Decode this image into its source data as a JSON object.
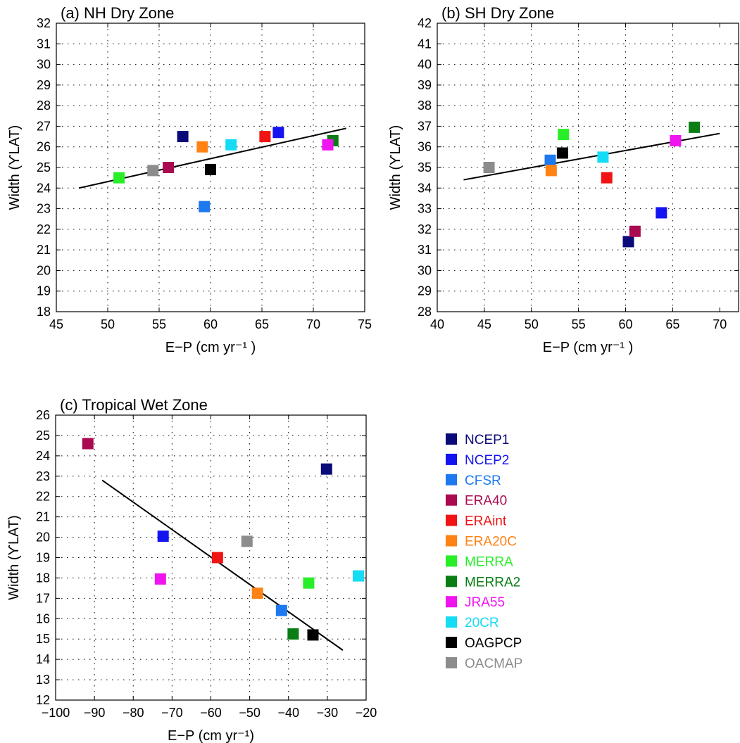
{
  "series_colors": {
    "NCEP1": "#0a0a78",
    "NCEP2": "#1414f0",
    "CFSR": "#1e78f0",
    "ERA40": "#aa0a50",
    "ERAint": "#f01414",
    "ERA20C": "#ff8214",
    "MERRA": "#28ee28",
    "MERRA2": "#0a7d14",
    "JRA55": "#f014f0",
    "20CR": "#14dcf5",
    "OAGPCP": "#000000",
    "OACMAP": "#8c8c8c"
  },
  "legend": {
    "entries": [
      "NCEP1",
      "NCEP2",
      "CFSR",
      "ERA40",
      "ERAint",
      "ERA20C",
      "MERRA",
      "MERRA2",
      "JRA55",
      "20CR",
      "OAGPCP",
      "OACMAP"
    ]
  },
  "chart_data": [
    {
      "type": "scatter",
      "title": "(a)  NH Dry Zone",
      "xlabel": "E−P (cm yr⁻¹ )",
      "ylabel": "Width (ϒLAT)",
      "xlim": [
        45,
        75
      ],
      "ylim": [
        18,
        32
      ],
      "xticks": [
        45,
        50,
        55,
        60,
        65,
        70,
        75
      ],
      "yticks": [
        18,
        19,
        20,
        21,
        22,
        23,
        24,
        25,
        26,
        27,
        28,
        29,
        30,
        31,
        32
      ],
      "grid": true,
      "points": [
        {
          "name": "NCEP1",
          "x": 57.3,
          "y": 26.5
        },
        {
          "name": "NCEP2",
          "x": 66.6,
          "y": 26.7
        },
        {
          "name": "CFSR",
          "x": 59.4,
          "y": 23.1
        },
        {
          "name": "ERA40",
          "x": 55.9,
          "y": 25.0
        },
        {
          "name": "ERAint",
          "x": 65.3,
          "y": 26.5
        },
        {
          "name": "ERA20C",
          "x": 59.2,
          "y": 26.0
        },
        {
          "name": "MERRA",
          "x": 51.1,
          "y": 24.5
        },
        {
          "name": "MERRA2",
          "x": 71.9,
          "y": 26.3
        },
        {
          "name": "JRA55",
          "x": 71.4,
          "y": 26.1
        },
        {
          "name": "20CR",
          "x": 62.0,
          "y": 26.1
        },
        {
          "name": "OAGPCP",
          "x": 60.0,
          "y": 24.9
        },
        {
          "name": "OACMAP",
          "x": 54.4,
          "y": 24.85
        }
      ],
      "fit": {
        "x": [
          47.2,
          73.2
        ],
        "y": [
          24.0,
          26.9
        ]
      }
    },
    {
      "type": "scatter",
      "title": "(b)  SH Dry Zone",
      "xlabel": "E−P (cm yr⁻¹ )",
      "ylabel": "Width (ϒLAT)",
      "xlim": [
        40,
        72
      ],
      "ylim": [
        28,
        42
      ],
      "xticks": [
        40,
        45,
        50,
        55,
        60,
        65,
        70
      ],
      "yticks": [
        28,
        29,
        30,
        31,
        32,
        33,
        34,
        35,
        36,
        37,
        38,
        39,
        40,
        41,
        42
      ],
      "grid": true,
      "points": [
        {
          "name": "NCEP1",
          "x": 60.3,
          "y": 31.4
        },
        {
          "name": "NCEP2",
          "x": 63.8,
          "y": 32.8
        },
        {
          "name": "CFSR",
          "x": 52.0,
          "y": 35.35
        },
        {
          "name": "ERA40",
          "x": 61.0,
          "y": 31.9
        },
        {
          "name": "ERAint",
          "x": 58.0,
          "y": 34.5
        },
        {
          "name": "ERA20C",
          "x": 52.1,
          "y": 34.85
        },
        {
          "name": "MERRA",
          "x": 53.4,
          "y": 36.6
        },
        {
          "name": "MERRA2",
          "x": 67.3,
          "y": 36.95
        },
        {
          "name": "JRA55",
          "x": 65.3,
          "y": 36.3
        },
        {
          "name": "20CR",
          "x": 57.6,
          "y": 35.5
        },
        {
          "name": "OAGPCP",
          "x": 53.3,
          "y": 35.7
        },
        {
          "name": "OACMAP",
          "x": 45.5,
          "y": 35.0
        }
      ],
      "fit": {
        "x": [
          42.8,
          70.0
        ],
        "y": [
          34.4,
          36.65
        ]
      }
    },
    {
      "type": "scatter",
      "title": "(c)  Tropical Wet Zone",
      "xlabel": "E−P (cm yr⁻¹)",
      "ylabel": "Width (ϒLAT)",
      "xlim": [
        -100,
        -20
      ],
      "ylim": [
        12,
        26
      ],
      "xticks": [
        -100,
        -90,
        -80,
        -70,
        -60,
        -50,
        -40,
        -30,
        -20
      ],
      "yticks": [
        12,
        13,
        14,
        15,
        16,
        17,
        18,
        19,
        20,
        21,
        22,
        23,
        24,
        25,
        26
      ],
      "grid": true,
      "points": [
        {
          "name": "NCEP1",
          "x": -30.2,
          "y": 23.35
        },
        {
          "name": "NCEP2",
          "x": -72.3,
          "y": 20.05
        },
        {
          "name": "CFSR",
          "x": -41.8,
          "y": 16.4
        },
        {
          "name": "ERA40",
          "x": -91.7,
          "y": 24.6
        },
        {
          "name": "ERAint",
          "x": -58.3,
          "y": 19.0
        },
        {
          "name": "ERA20C",
          "x": -48.0,
          "y": 17.25
        },
        {
          "name": "MERRA",
          "x": -34.8,
          "y": 17.75
        },
        {
          "name": "MERRA2",
          "x": -38.8,
          "y": 15.25
        },
        {
          "name": "JRA55",
          "x": -73.0,
          "y": 17.95
        },
        {
          "name": "20CR",
          "x": -22.0,
          "y": 18.1
        },
        {
          "name": "OAGPCP",
          "x": -33.7,
          "y": 15.2
        },
        {
          "name": "OACMAP",
          "x": -50.7,
          "y": 19.8
        }
      ],
      "fit": {
        "x": [
          -88.0,
          -26.0
        ],
        "y": [
          22.8,
          14.45
        ]
      }
    }
  ]
}
